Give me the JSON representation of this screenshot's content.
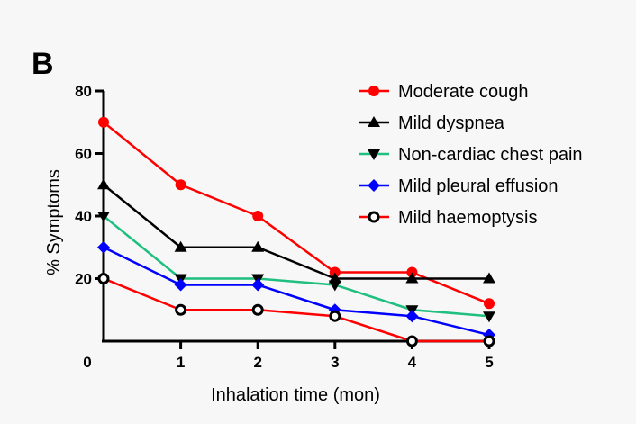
{
  "chart_data": {
    "type": "line",
    "panel_label": "B",
    "xlabel": "Inhalation time (mon)",
    "ylabel": "% Symptoms",
    "x": [
      0,
      1,
      2,
      3,
      4,
      5
    ],
    "xlim": [
      0,
      5
    ],
    "ylim": [
      0,
      80
    ],
    "x_tick_labels": [
      "0",
      "1",
      "2",
      "3",
      "4",
      "5"
    ],
    "y_ticks": [
      20,
      40,
      60,
      80
    ],
    "y_tick_labels": [
      "20",
      "40",
      "60",
      "80"
    ],
    "grid": false,
    "legend_position": "top-right",
    "series": [
      {
        "name": "Moderate cough",
        "values": [
          70,
          50,
          40,
          22,
          22,
          12
        ],
        "color": "#ff0000",
        "marker": "circle"
      },
      {
        "name": "Mild dyspnea",
        "values": [
          50,
          30,
          30,
          20,
          20,
          20
        ],
        "color": "#000000",
        "marker": "triangle-up"
      },
      {
        "name": "Non-cardiac chest pain",
        "values": [
          40,
          20,
          20,
          18,
          10,
          8
        ],
        "color": "#1fbf7f",
        "marker": "triangle-down"
      },
      {
        "name": "Mild pleural effusion",
        "values": [
          30,
          18,
          18,
          10,
          8,
          2
        ],
        "color": "#0000ff",
        "marker": "diamond"
      },
      {
        "name": "Mild haemoptysis",
        "values": [
          20,
          10,
          10,
          8,
          0,
          0
        ],
        "color": "#ff0000",
        "marker": "open-circle"
      }
    ]
  }
}
